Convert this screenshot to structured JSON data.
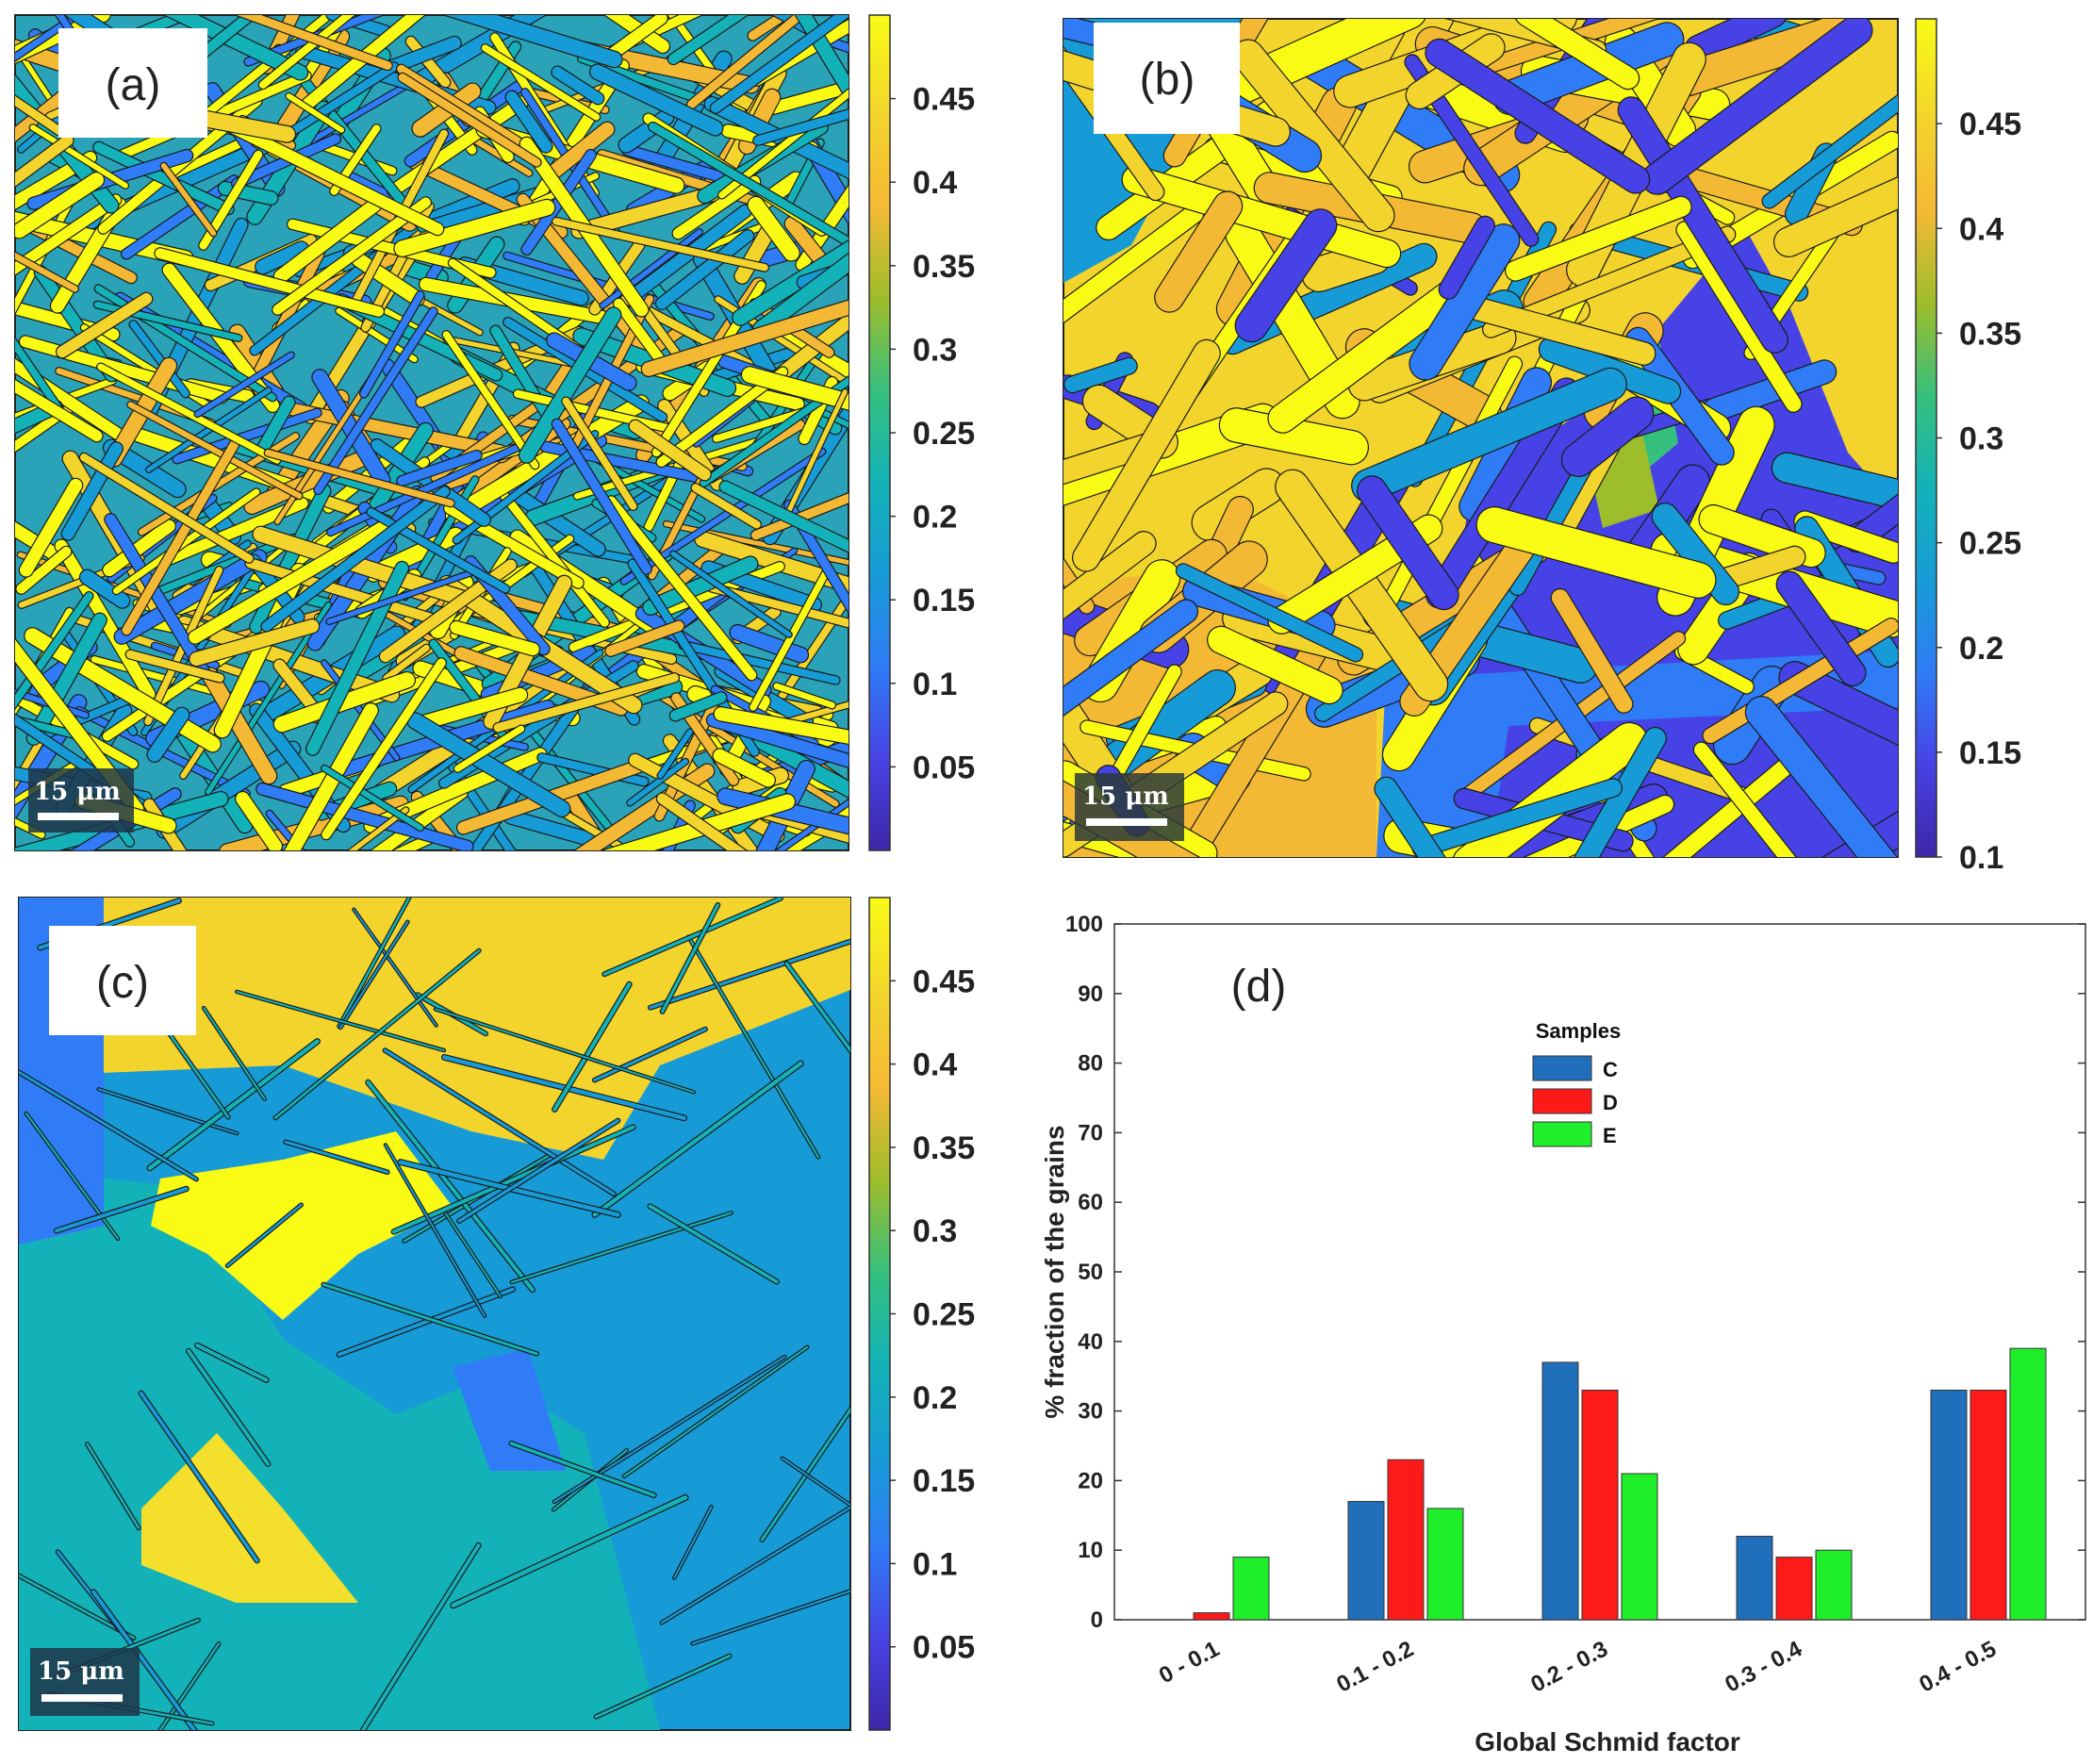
{
  "panels": {
    "a": {
      "label": "(a)",
      "scale_bar": "15 μm",
      "colorbar": {
        "ticks": [
          "0.45",
          "0.4",
          "0.35",
          "0.3",
          "0.25",
          "0.2",
          "0.15",
          "0.1",
          "0.05"
        ],
        "range": [
          0.0,
          0.5
        ]
      }
    },
    "b": {
      "label": "(b)",
      "scale_bar": "15 μm",
      "colorbar": {
        "ticks": [
          "0.45",
          "0.4",
          "0.35",
          "0.3",
          "0.25",
          "0.2",
          "0.15",
          "0.1"
        ],
        "range": [
          0.1,
          0.5
        ]
      }
    },
    "c": {
      "label": "(c)",
      "scale_bar": "15 μm",
      "colorbar": {
        "ticks": [
          "0.45",
          "0.4",
          "0.35",
          "0.3",
          "0.25",
          "0.2",
          "0.15",
          "0.1",
          "0.05"
        ],
        "range": [
          0.0,
          0.5
        ]
      }
    },
    "d": {
      "label": "(d)"
    }
  },
  "colormap": [
    "#3e26a8",
    "#4742e5",
    "#2f7cf6",
    "#179bd7",
    "#13b2b8",
    "#36c07d",
    "#9dbd2b",
    "#f4b934",
    "#f3d42c",
    "#f9fb15"
  ],
  "chart_data": {
    "type": "bar",
    "title": "",
    "xlabel": "Global Schmid factor",
    "ylabel": "% fraction of the grains",
    "categories": [
      "0 - 0.1",
      "0.1 - 0.2",
      "0.2 - 0.3",
      "0.3 - 0.4",
      "0.4 - 0.5"
    ],
    "series": [
      {
        "name": "C",
        "color": "#1f6fba",
        "values": [
          0,
          17,
          37,
          12,
          33
        ]
      },
      {
        "name": "D",
        "color": "#ff1a1a",
        "values": [
          1,
          23,
          33,
          9,
          33
        ]
      },
      {
        "name": "E",
        "color": "#1fee2a",
        "values": [
          9,
          16,
          21,
          10,
          39
        ]
      }
    ],
    "ylim": [
      0,
      100
    ],
    "yticks": [
      "0",
      "10",
      "20",
      "30",
      "40",
      "50",
      "60",
      "70",
      "80",
      "90",
      "100"
    ],
    "legend": {
      "title": "Samples",
      "placement": "top-center"
    },
    "grid": false
  }
}
